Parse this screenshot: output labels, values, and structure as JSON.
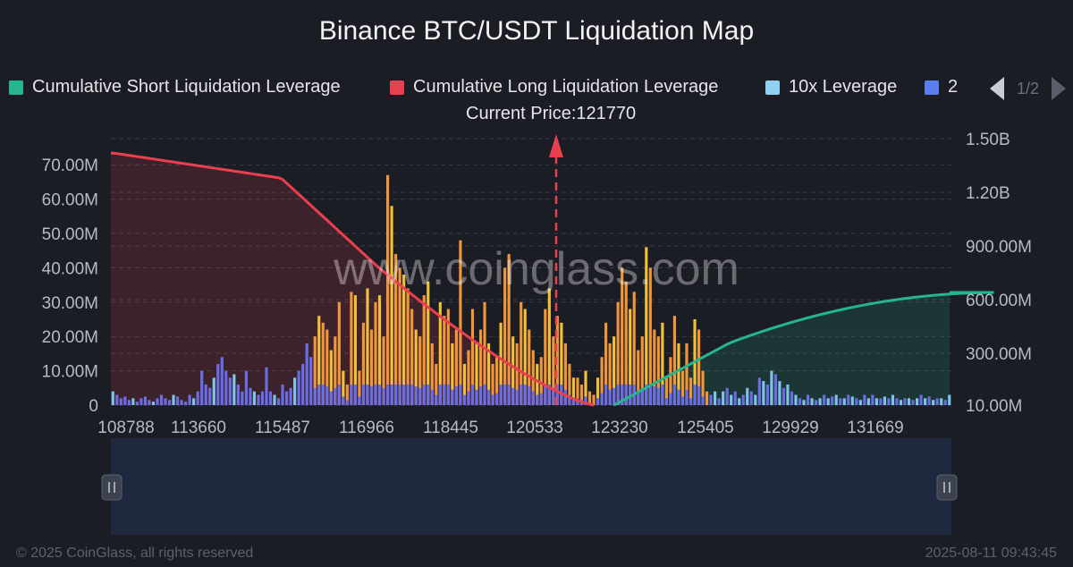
{
  "title": "Binance BTC/USDT Liquidation Map",
  "current_price_label": "Current Price:121770",
  "pager": {
    "text": "1/2"
  },
  "watermark": "www.coinglass.com",
  "footer": {
    "copyright": "© 2025 CoinGlass, all rights reserved",
    "timestamp": "2025-08-11 09:43:45"
  },
  "legend": [
    {
      "label": "Cumulative Short Liquidation Leverage",
      "color": "#25b58f"
    },
    {
      "label": "Cumulative Long Liquidation Leverage",
      "color": "#ea3f4e"
    },
    {
      "label": "10x Leverage",
      "color": "#8fd0f3"
    },
    {
      "label": "2",
      "color": "#5b7ff0"
    }
  ],
  "colors": {
    "bar_blue": "#6a6ee6",
    "bar_light_blue": "#7dc4e6",
    "bar_yellow": "#f2c037",
    "bar_orange": "#f0953a",
    "short_line": "#25b58f",
    "long_line": "#ea3f4e",
    "current_price_line": "#ea3f4e",
    "slider": "#1e2a44"
  },
  "chart_data": {
    "type": "bar",
    "x_tick_labels": [
      "108788",
      "113660",
      "115487",
      "116966",
      "118445",
      "120533",
      "123230",
      "125405",
      "129929",
      "131669"
    ],
    "current_price": 121770,
    "y_left_ticks": [
      "0",
      "10.00M",
      "20.00M",
      "30.00M",
      "40.00M",
      "50.00M",
      "60.00M",
      "70.00M"
    ],
    "y_left_range": [
      0,
      75
    ],
    "y_right_ticks": [
      "10.00M",
      "300.00M",
      "600.00M",
      "900.00M",
      "1.20B",
      "1.50B"
    ],
    "y_right_range": [
      10,
      1500
    ],
    "bar_values_m": [
      4,
      3,
      2,
      2.5,
      1.5,
      2,
      1,
      2,
      2.5,
      1.5,
      1,
      2,
      3,
      2,
      1.5,
      3,
      2.5,
      1.5,
      1,
      3,
      2,
      4,
      10,
      6,
      5,
      8,
      12,
      14,
      10,
      8,
      9,
      6,
      4,
      10,
      5,
      4,
      3,
      4,
      11,
      4,
      3,
      2,
      6,
      4,
      5,
      8,
      10,
      12,
      18,
      14,
      20,
      26,
      24,
      22,
      16,
      20,
      30,
      10,
      6,
      33,
      32,
      10,
      24,
      34,
      22,
      30,
      32,
      20,
      67,
      58,
      44,
      40,
      38,
      34,
      28,
      22,
      20,
      32,
      36,
      18,
      12,
      30,
      26,
      28,
      18,
      22,
      48,
      12,
      16,
      28,
      18,
      22,
      30,
      18,
      12,
      14,
      24,
      40,
      44,
      20,
      18,
      30,
      28,
      22,
      16,
      12,
      14,
      28,
      34,
      20,
      26,
      24,
      18,
      12,
      8,
      8,
      6,
      10,
      4,
      3,
      8,
      14,
      24,
      18,
      20,
      30,
      40,
      36,
      28,
      33,
      16,
      20,
      46,
      40,
      22,
      20,
      24,
      8,
      14,
      26,
      18,
      10,
      18,
      8,
      25,
      22,
      10,
      4,
      3,
      4,
      2,
      4,
      5,
      3,
      4,
      2,
      3,
      5,
      4,
      3,
      8,
      7,
      6,
      10,
      9,
      7,
      5,
      6,
      4,
      3,
      2,
      1.5,
      3,
      2,
      1.5,
      2,
      3,
      2,
      2.5,
      3,
      2,
      2,
      3,
      2.5,
      2,
      1.5,
      3,
      2,
      3,
      2,
      2,
      2.5,
      2,
      3,
      2,
      1.5,
      2,
      2,
      1.5,
      2,
      3,
      2,
      2.5,
      1.5,
      2,
      2,
      1.5,
      3
    ],
    "series": [
      {
        "name": "Cumulative Long Liquidation Leverage",
        "x_index_range": [
          0,
          119
        ],
        "start_value_b": 1.42,
        "end_value_b": 0.01
      },
      {
        "name": "Cumulative Short Liquidation Leverage",
        "x_index_range": [
          124,
          219
        ],
        "start_value_b": 0.01,
        "end_value_b": 0.64
      }
    ]
  }
}
